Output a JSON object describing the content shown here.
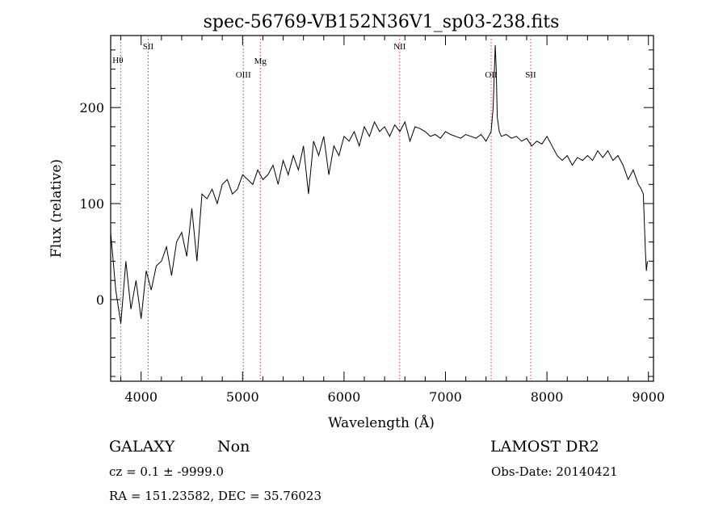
{
  "chart_data": {
    "type": "line",
    "title": "spec-56769-VB152N36V1_sp03-238.fits",
    "xlabel": "Wavelength (Å)",
    "ylabel": "Flux (relative)",
    "xlim": [
      3700,
      9050
    ],
    "ylim": [
      -85,
      275
    ],
    "xticks": [
      4000,
      5000,
      6000,
      7000,
      8000,
      9000
    ],
    "yticks": [
      0,
      100,
      200
    ],
    "grid": false,
    "series": [
      {
        "x": [
          3700,
          3750,
          3800,
          3850,
          3900,
          3950,
          4000,
          4050,
          4100,
          4150,
          4200,
          4250,
          4300,
          4350,
          4400,
          4450,
          4500,
          4550,
          4600,
          4650,
          4700,
          4750,
          4800,
          4850,
          4900,
          4950,
          5000,
          5050,
          5100,
          5150,
          5200,
          5250,
          5300,
          5350,
          5400,
          5450,
          5500,
          5550,
          5600,
          5650,
          5700,
          5750,
          5800,
          5850,
          5900,
          5950,
          6000,
          6050,
          6100,
          6150,
          6200,
          6250,
          6300,
          6350,
          6400,
          6450,
          6500,
          6550,
          6600,
          6650,
          6700,
          6750,
          6800,
          6850,
          6900,
          6950,
          7000,
          7050,
          7100,
          7150,
          7200,
          7250,
          7300,
          7350,
          7400,
          7450,
          7470,
          7490,
          7500,
          7510,
          7530,
          7550,
          7600,
          7650,
          7700,
          7750,
          7800,
          7850,
          7900,
          7950,
          8000,
          8050,
          8100,
          8150,
          8200,
          8250,
          8300,
          8350,
          8400,
          8450,
          8500,
          8550,
          8600,
          8650,
          8700,
          8750,
          8800,
          8850,
          8900,
          8930,
          8950,
          8970,
          8980,
          8990
        ],
        "values": [
          70,
          10,
          -25,
          40,
          -10,
          20,
          -20,
          30,
          10,
          35,
          40,
          55,
          25,
          60,
          70,
          45,
          95,
          40,
          110,
          105,
          115,
          100,
          120,
          125,
          110,
          115,
          130,
          125,
          120,
          135,
          125,
          130,
          140,
          120,
          145,
          130,
          150,
          135,
          160,
          110,
          165,
          150,
          170,
          130,
          160,
          150,
          170,
          165,
          175,
          160,
          180,
          170,
          185,
          175,
          180,
          170,
          182,
          175,
          185,
          165,
          180,
          178,
          175,
          170,
          172,
          168,
          175,
          172,
          170,
          168,
          172,
          170,
          168,
          172,
          165,
          175,
          200,
          265,
          240,
          190,
          175,
          170,
          172,
          168,
          170,
          165,
          168,
          160,
          165,
          162,
          170,
          160,
          150,
          145,
          150,
          140,
          148,
          145,
          150,
          145,
          155,
          148,
          155,
          145,
          150,
          140,
          125,
          135,
          120,
          115,
          110,
          50,
          30,
          40
        ]
      }
    ],
    "annotations": [
      {
        "label": "Hθ",
        "x": 3798,
        "style": "top-left"
      },
      {
        "label": "SII",
        "x": 4070,
        "style": "top"
      },
      {
        "label": "OIII",
        "x": 5007,
        "style": "mid"
      },
      {
        "label": "Mg",
        "x": 5175,
        "style": "upper-mid"
      },
      {
        "label": "NII",
        "x": 6548,
        "style": "top"
      },
      {
        "label": "OII",
        "x": 7450,
        "style": "mid"
      },
      {
        "label": "SII",
        "x": 7840,
        "style": "mid"
      }
    ]
  },
  "info": {
    "object_class": "GALAXY",
    "subclass": "Non",
    "survey": "LAMOST DR2",
    "cz": "cz = 0.1 ± -9999.0",
    "obs_date": "Obs-Date: 20140421",
    "coords": "RA = 151.23582, DEC =  35.76023"
  }
}
